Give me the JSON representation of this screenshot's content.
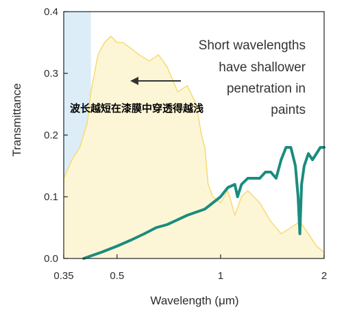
{
  "chart_data": {
    "type": "line",
    "xlabel": "Wavelength (μm)",
    "ylabel": "Transmittance",
    "x_scale": "log",
    "xlim": [
      0.35,
      2.0
    ],
    "ylim": [
      0.0,
      0.4
    ],
    "x_ticks": [
      0.35,
      0.5,
      1,
      2
    ],
    "x_tick_labels": [
      "0.35",
      "0.5",
      "1",
      "2"
    ],
    "y_ticks": [
      0.0,
      0.1,
      0.2,
      0.3,
      0.4
    ],
    "y_tick_labels": [
      "0.0",
      "0.1",
      "0.2",
      "0.3",
      "0.4"
    ],
    "grid": false,
    "shaded_region": {
      "x_range": [
        0.35,
        0.42
      ],
      "color": "#dcedf8"
    },
    "series": [
      {
        "color": "#f6dc78",
        "fill": "#fdf6d6",
        "x": [
          0.35,
          0.37,
          0.39,
          0.41,
          0.42,
          0.44,
          0.46,
          0.48,
          0.5,
          0.52,
          0.55,
          0.58,
          0.62,
          0.66,
          0.7,
          0.75,
          0.8,
          0.85,
          0.88,
          0.9,
          0.92,
          0.95,
          1.0,
          1.05,
          1.1,
          1.15,
          1.2,
          1.3,
          1.4,
          1.5,
          1.6,
          1.7,
          1.8,
          1.9,
          2.0
        ],
        "y": [
          0.13,
          0.16,
          0.18,
          0.22,
          0.27,
          0.33,
          0.35,
          0.36,
          0.35,
          0.35,
          0.34,
          0.33,
          0.32,
          0.33,
          0.31,
          0.27,
          0.28,
          0.25,
          0.2,
          0.18,
          0.12,
          0.1,
          0.09,
          0.11,
          0.07,
          0.1,
          0.11,
          0.09,
          0.06,
          0.04,
          0.05,
          0.06,
          0.04,
          0.02,
          0.01
        ]
      },
      {
        "color": "#1a8c7e",
        "x": [
          0.4,
          0.45,
          0.5,
          0.55,
          0.6,
          0.65,
          0.7,
          0.8,
          0.9,
          1.0,
          1.05,
          1.1,
          1.12,
          1.15,
          1.2,
          1.3,
          1.35,
          1.4,
          1.45,
          1.5,
          1.55,
          1.6,
          1.65,
          1.68,
          1.7,
          1.72,
          1.75,
          1.8,
          1.85,
          1.9,
          1.95,
          2.0
        ],
        "y": [
          0.0,
          0.01,
          0.02,
          0.03,
          0.04,
          0.05,
          0.055,
          0.07,
          0.08,
          0.1,
          0.115,
          0.12,
          0.1,
          0.12,
          0.13,
          0.13,
          0.14,
          0.14,
          0.13,
          0.16,
          0.18,
          0.18,
          0.15,
          0.1,
          0.04,
          0.12,
          0.15,
          0.17,
          0.16,
          0.17,
          0.18,
          0.18
        ]
      }
    ],
    "annotations": {
      "english": [
        "Short wavelengths",
        "have shallower",
        "penetration in",
        "paints"
      ],
      "chinese": "波长越短在漆膜中穿透得越浅"
    }
  }
}
